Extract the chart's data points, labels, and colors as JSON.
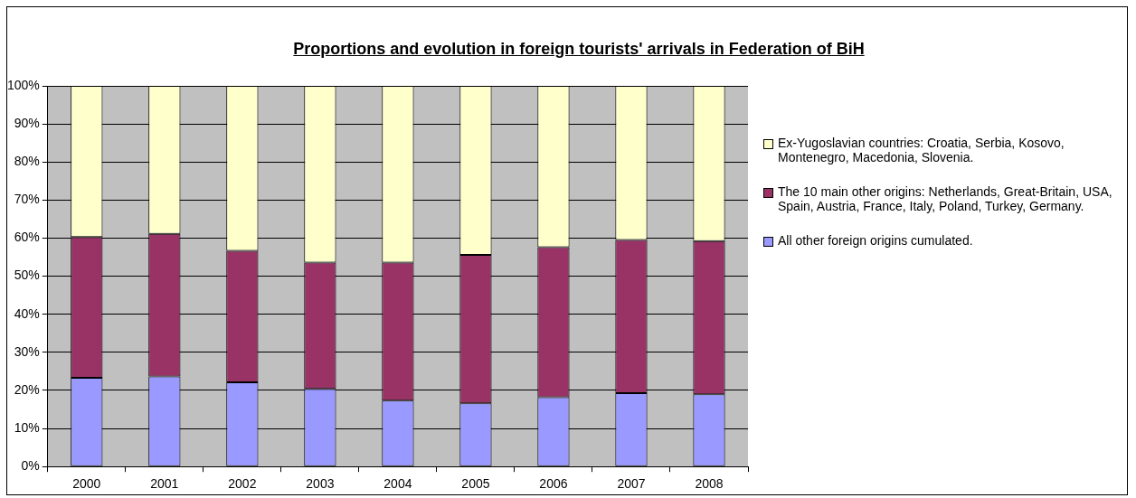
{
  "chart_data": {
    "type": "bar",
    "title": "Proportions and evolution in foreign tourists' arrivals in Federation of BiH",
    "categories": [
      "2000",
      "2001",
      "2002",
      "2003",
      "2004",
      "2005",
      "2006",
      "2007",
      "2008"
    ],
    "stacked": true,
    "series": [
      {
        "name": "All other foreign origins cumulated.",
        "color": "#9999ff",
        "values": [
          23.3,
          23.7,
          22.1,
          20.4,
          17.3,
          16.6,
          18.2,
          19.3,
          19.0
        ]
      },
      {
        "name": "The 10 main other origins: Netherlands, Great-Britain, USA, Spain, Austria, France, Italy, Poland, Turkey, Germany.",
        "color": "#993366",
        "values": [
          37.0,
          37.4,
          34.6,
          33.2,
          36.3,
          39.0,
          39.4,
          40.2,
          40.2
        ]
      },
      {
        "name": "Ex-Yugoslavian countries: Croatia, Serbia, Kosovo, Montenegro, Macedonia, Slovenia.",
        "color": "#ffffcc",
        "values": [
          39.7,
          38.9,
          43.3,
          46.4,
          46.4,
          44.4,
          42.4,
          40.5,
          40.8
        ]
      }
    ],
    "ylim": [
      0,
      100
    ],
    "yticks": [
      {
        "value": 0,
        "label": "0%"
      },
      {
        "value": 10,
        "label": "10%"
      },
      {
        "value": 20,
        "label": "20%"
      },
      {
        "value": 30,
        "label": "30%"
      },
      {
        "value": 40,
        "label": "40%"
      },
      {
        "value": 50,
        "label": "50%"
      },
      {
        "value": 60,
        "label": "60%"
      },
      {
        "value": 70,
        "label": "70%"
      },
      {
        "value": 80,
        "label": "80%"
      },
      {
        "value": 90,
        "label": "90%"
      },
      {
        "value": 100,
        "label": "100%"
      }
    ],
    "grid": "y",
    "legend": "right"
  }
}
